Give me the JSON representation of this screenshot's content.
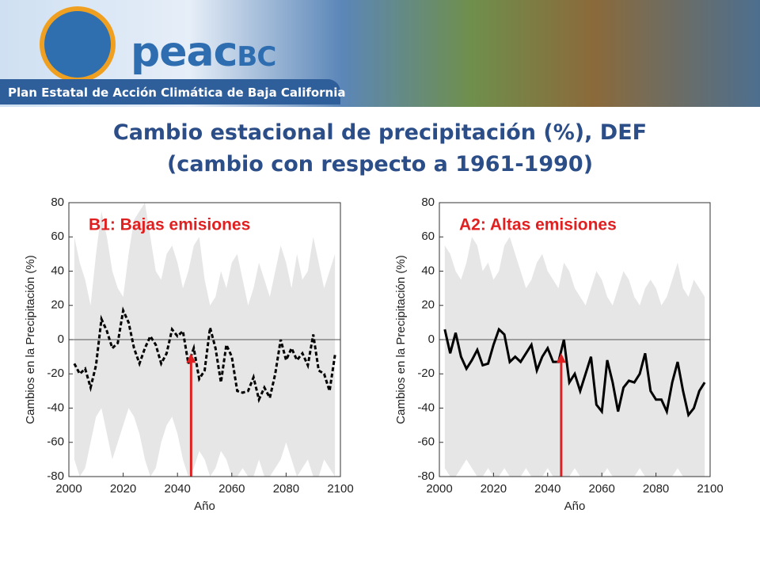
{
  "header": {
    "logo": {
      "name": "peac",
      "suffix": "BC"
    },
    "subtitle": "Plan Estatal de Acción Climática de Baja California",
    "title_line1": "Cambio estacional de precipitación (%), DEF",
    "title_line2": "(cambio con respecto a 1961-1990)"
  },
  "chart_data": [
    {
      "type": "line",
      "title": "B1: Bajas emisiones",
      "xlabel": "Año",
      "ylabel": "Cambios en la Precipitación (%)",
      "xlim": [
        2000,
        2100
      ],
      "xticks": [
        2000,
        2020,
        2040,
        2060,
        2080,
        2100
      ],
      "ylim": [
        -80,
        80
      ],
      "yticks": [
        -80,
        -60,
        -40,
        -20,
        0,
        20,
        40,
        60,
        80
      ],
      "line_style": "dashed",
      "color": "#000000",
      "band_color": "#e6e6e6",
      "reference_line": 0,
      "arrow": {
        "x": 2045,
        "y": -8,
        "color": "#e02020"
      },
      "x": [
        2002,
        2004,
        2006,
        2008,
        2010,
        2012,
        2014,
        2016,
        2018,
        2020,
        2022,
        2024,
        2026,
        2028,
        2030,
        2032,
        2034,
        2036,
        2038,
        2040,
        2042,
        2044,
        2046,
        2048,
        2050,
        2052,
        2054,
        2056,
        2058,
        2060,
        2062,
        2064,
        2066,
        2068,
        2070,
        2072,
        2074,
        2076,
        2078,
        2080,
        2082,
        2084,
        2086,
        2088,
        2090,
        2092,
        2094,
        2096,
        2098
      ],
      "values": [
        -14,
        -20,
        -17,
        -28,
        -15,
        12,
        5,
        -5,
        -2,
        17,
        10,
        -5,
        -14,
        -5,
        2,
        -3,
        -14,
        -8,
        6,
        2,
        5,
        -14,
        -5,
        -23,
        -18,
        7,
        -5,
        -25,
        -3,
        -10,
        -30,
        -31,
        -30,
        -22,
        -35,
        -28,
        -34,
        -20,
        0,
        -12,
        -5,
        -12,
        -8,
        -15,
        3,
        -18,
        -20,
        -30,
        -9
      ],
      "band_upper": [
        60,
        45,
        35,
        20,
        50,
        75,
        60,
        40,
        30,
        25,
        50,
        70,
        75,
        80,
        60,
        40,
        35,
        50,
        55,
        45,
        30,
        40,
        55,
        60,
        35,
        20,
        25,
        40,
        30,
        45,
        50,
        35,
        20,
        30,
        45,
        35,
        25,
        40,
        55,
        45,
        30,
        50,
        35,
        40,
        60,
        45,
        30,
        40,
        50
      ],
      "band_lower": [
        -70,
        -80,
        -75,
        -60,
        -45,
        -40,
        -55,
        -70,
        -60,
        -50,
        -40,
        -45,
        -55,
        -70,
        -80,
        -75,
        -60,
        -50,
        -45,
        -55,
        -70,
        -80,
        -75,
        -65,
        -70,
        -80,
        -75,
        -65,
        -70,
        -80,
        -80,
        -75,
        -80,
        -80,
        -70,
        -80,
        -80,
        -75,
        -70,
        -60,
        -70,
        -80,
        -75,
        -70,
        -80,
        -80,
        -70,
        -75,
        -80
      ]
    },
    {
      "type": "line",
      "title": "A2: Altas emisiones",
      "xlabel": "Año",
      "ylabel": "Cambios en la Precipitación (%)",
      "xlim": [
        2000,
        2100
      ],
      "xticks": [
        2000,
        2020,
        2040,
        2060,
        2080,
        2100
      ],
      "ylim": [
        -80,
        80
      ],
      "yticks": [
        -80,
        -60,
        -40,
        -20,
        0,
        20,
        40,
        60,
        80
      ],
      "line_style": "solid",
      "color": "#000000",
      "band_color": "#e6e6e6",
      "reference_line": 0,
      "arrow": {
        "x": 2045,
        "y": -8,
        "color": "#e02020"
      },
      "x": [
        2002,
        2004,
        2006,
        2008,
        2010,
        2012,
        2014,
        2016,
        2018,
        2020,
        2022,
        2024,
        2026,
        2028,
        2030,
        2032,
        2034,
        2036,
        2038,
        2040,
        2042,
        2044,
        2046,
        2048,
        2050,
        2052,
        2054,
        2056,
        2058,
        2060,
        2062,
        2064,
        2066,
        2068,
        2070,
        2072,
        2074,
        2076,
        2078,
        2080,
        2082,
        2084,
        2086,
        2088,
        2090,
        2092,
        2094,
        2096,
        2098
      ],
      "values": [
        6,
        -8,
        4,
        -10,
        -17,
        -12,
        -6,
        -15,
        -14,
        -3,
        6,
        3,
        -13,
        -10,
        -13,
        -8,
        -3,
        -18,
        -10,
        -5,
        -13,
        -13,
        0,
        -25,
        -20,
        -30,
        -20,
        -10,
        -38,
        -42,
        -12,
        -25,
        -42,
        -28,
        -24,
        -25,
        -20,
        -8,
        -30,
        -35,
        -35,
        -42,
        -25,
        -13,
        -30,
        -44,
        -40,
        -30,
        -25
      ],
      "band_upper": [
        55,
        50,
        40,
        35,
        45,
        60,
        55,
        40,
        45,
        35,
        40,
        55,
        60,
        50,
        40,
        30,
        35,
        45,
        50,
        40,
        35,
        30,
        45,
        40,
        30,
        25,
        20,
        30,
        40,
        35,
        25,
        20,
        30,
        40,
        35,
        25,
        20,
        30,
        35,
        30,
        20,
        25,
        35,
        45,
        30,
        25,
        35,
        30,
        25
      ],
      "band_lower": [
        -75,
        -80,
        -80,
        -75,
        -70,
        -75,
        -80,
        -80,
        -75,
        -80,
        -80,
        -75,
        -80,
        -80,
        -80,
        -75,
        -80,
        -80,
        -80,
        -75,
        -80,
        -80,
        -80,
        -80,
        -75,
        -80,
        -80,
        -80,
        -80,
        -80,
        -75,
        -80,
        -80,
        -80,
        -80,
        -80,
        -75,
        -80,
        -80,
        -80,
        -80,
        -80,
        -80,
        -75,
        -80,
        -80,
        -80,
        -80,
        -80
      ]
    }
  ]
}
